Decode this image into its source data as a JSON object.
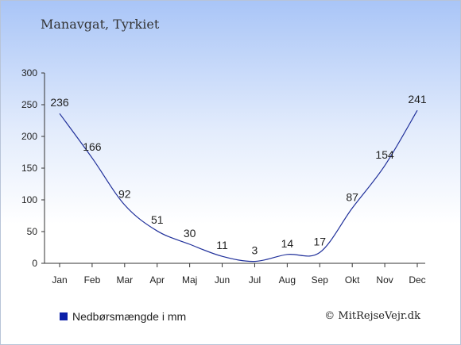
{
  "title": "Manavgat, Tyrkiet",
  "legend_label": "Nedbørsmængde i mm",
  "copyright": "© MitRejseVejr.dk",
  "colors": {
    "line": "#1f2f9a",
    "legend_swatch": "#0b1fa8",
    "text": "#222222"
  },
  "chart_data": {
    "type": "line",
    "categories": [
      "Jan",
      "Feb",
      "Mar",
      "Apr",
      "Maj",
      "Jun",
      "Jul",
      "Aug",
      "Sep",
      "Okt",
      "Nov",
      "Dec"
    ],
    "series": [
      {
        "name": "Nedbørsmængde i mm",
        "values": [
          236,
          166,
          92,
          51,
          30,
          11,
          3,
          14,
          17,
          87,
          154,
          241
        ]
      }
    ],
    "data_labels": [
      "236",
      "166",
      "92",
      "51",
      "30",
      "11",
      "3",
      "14",
      "17",
      "87",
      "154",
      "241"
    ],
    "yticks": [
      0,
      50,
      100,
      150,
      200,
      250,
      300
    ],
    "ylim": [
      0,
      300
    ],
    "grid": false,
    "legend_position": "bottom-left"
  }
}
